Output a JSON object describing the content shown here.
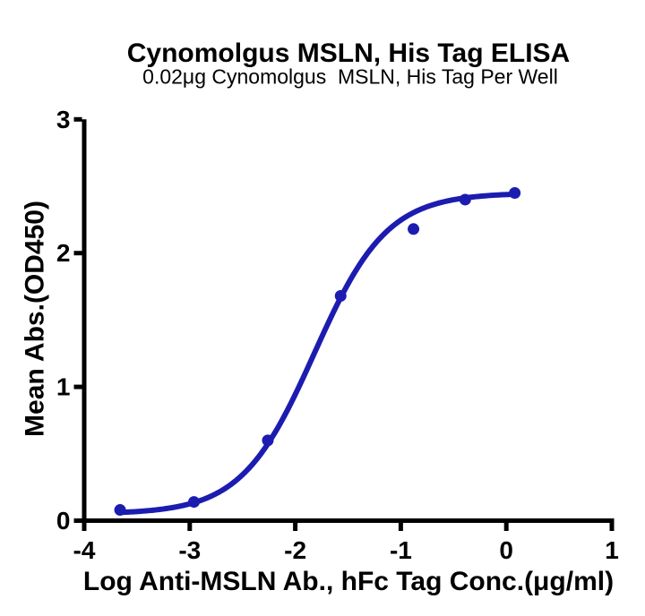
{
  "chart_data": {
    "type": "scatter",
    "title": "Cynomolgus MSLN, His Tag ELISA",
    "subtitle": "0.02μg Cynomolgus  MSLN, His Tag Per Well",
    "xlabel": "Log Anti-MSLN Ab., hFc Tag Conc.(μg/ml)",
    "ylabel": "Mean Abs.(OD450)",
    "xlim": [
      -4,
      1
    ],
    "ylim": [
      0,
      3
    ],
    "x_ticks": [
      -4,
      -3,
      -2,
      -1,
      0,
      1
    ],
    "y_ticks": [
      0,
      1,
      2,
      3
    ],
    "grid": false,
    "legend": null,
    "points": {
      "x": [
        -3.66,
        -2.96,
        -2.26,
        -1.57,
        -0.88,
        -0.39,
        0.08
      ],
      "y": [
        0.08,
        0.14,
        0.6,
        1.68,
        2.18,
        2.4,
        2.45
      ]
    },
    "fit_curve": {
      "model": "4PL",
      "bottom": 0.05,
      "top": 2.45,
      "log_ec50": -1.82,
      "hill": 1.26,
      "x_range": [
        -3.66,
        0.08
      ]
    },
    "colors": {
      "series": "#1c1cb0",
      "axis": "#000000",
      "text": "#000000",
      "background": "#ffffff"
    }
  }
}
